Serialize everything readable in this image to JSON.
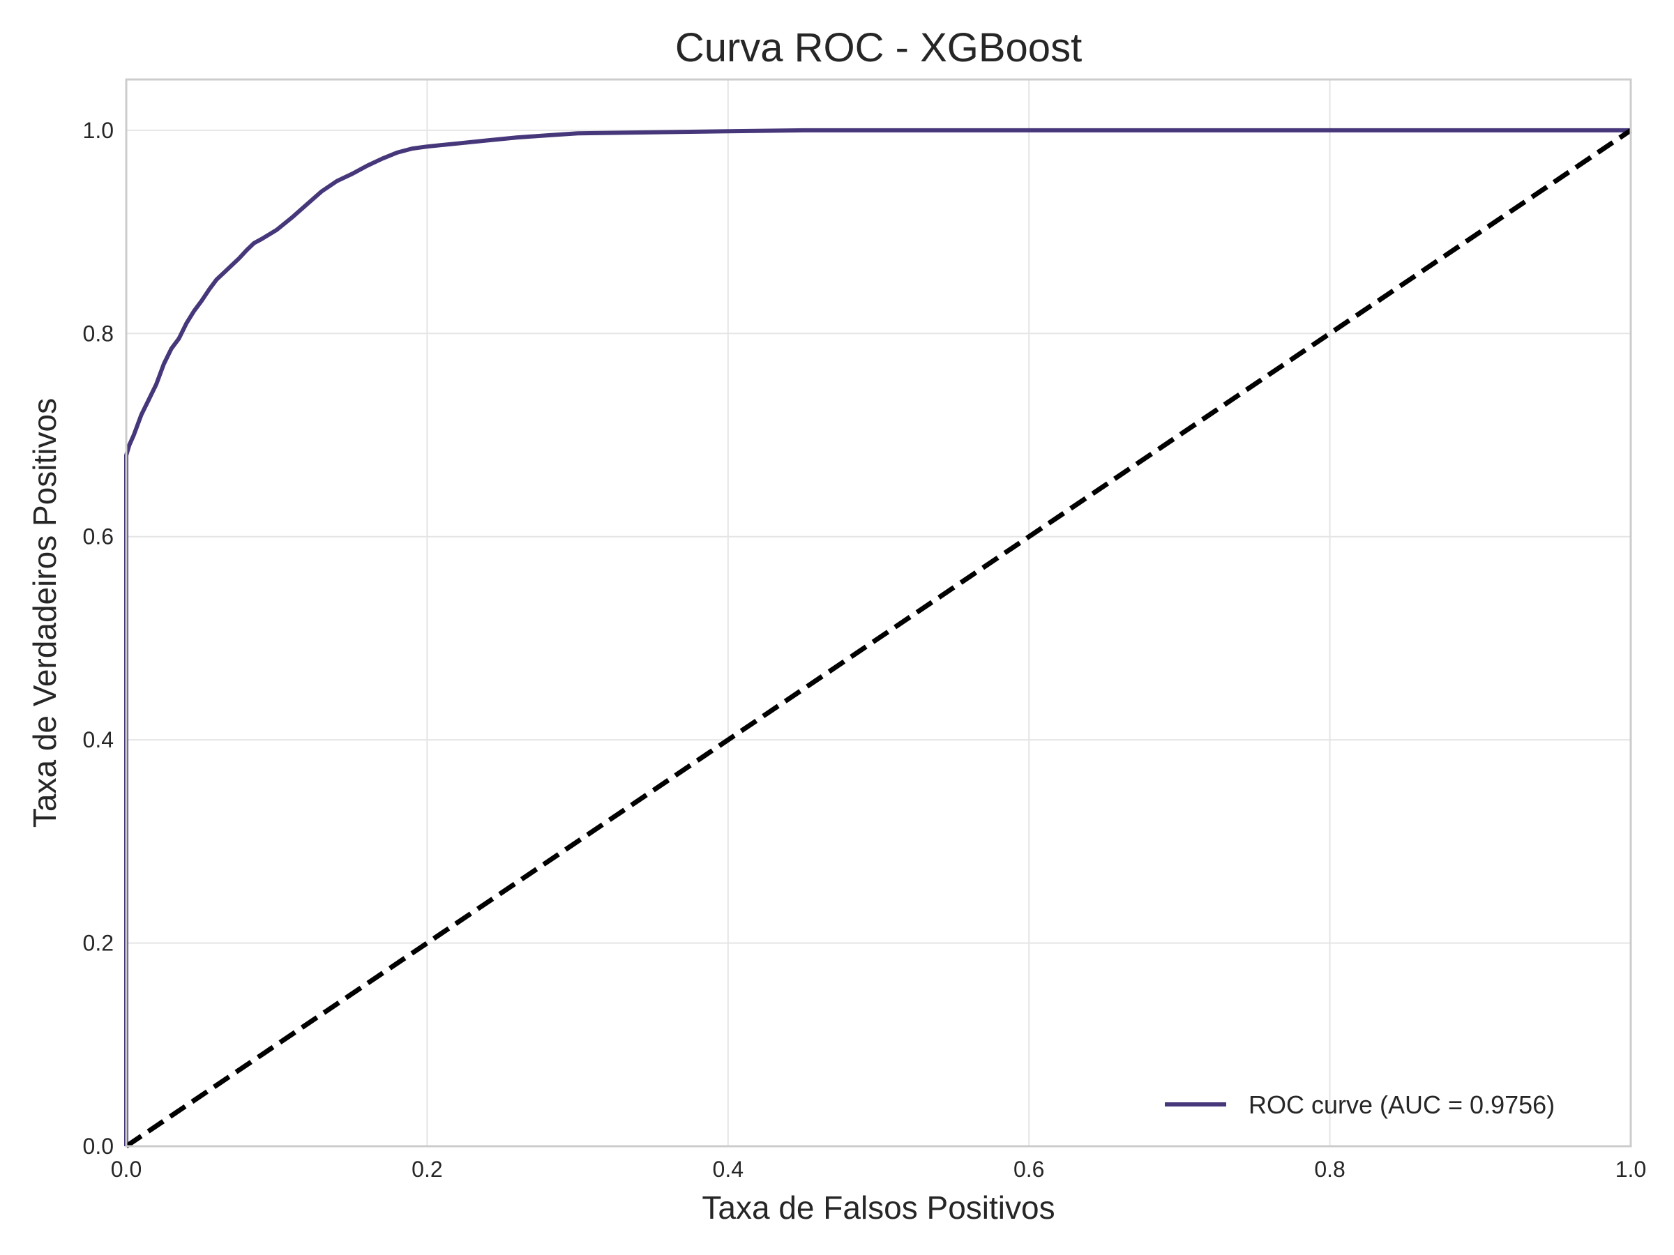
{
  "chart_data": {
    "type": "line",
    "title": "Curva ROC - XGBoost",
    "xlabel": "Taxa de Falsos Positivos",
    "ylabel": "Taxa de Verdadeiros Positivos",
    "xlim": [
      0.0,
      1.0
    ],
    "ylim": [
      0.0,
      1.05
    ],
    "xticks": [
      "0.0",
      "0.2",
      "0.4",
      "0.6",
      "0.8",
      "1.0"
    ],
    "yticks": [
      "0.0",
      "0.2",
      "0.4",
      "0.6",
      "0.8",
      "1.0"
    ],
    "grid": true,
    "legend_position": "lower-right",
    "series": [
      {
        "name": "ROC curve (AUC = 0.9756)",
        "color": "#46377b",
        "style": "solid",
        "x": [
          0.0,
          0.0,
          0.0,
          0.002,
          0.005,
          0.01,
          0.015,
          0.02,
          0.025,
          0.03,
          0.035,
          0.04,
          0.045,
          0.05,
          0.055,
          0.06,
          0.065,
          0.07,
          0.075,
          0.08,
          0.085,
          0.09,
          0.1,
          0.11,
          0.12,
          0.13,
          0.14,
          0.15,
          0.16,
          0.17,
          0.18,
          0.19,
          0.2,
          0.22,
          0.24,
          0.26,
          0.28,
          0.3,
          0.35,
          0.4,
          0.45,
          0.5,
          0.6,
          0.7,
          0.8,
          0.9,
          1.0
        ],
        "y": [
          0.0,
          0.6,
          0.68,
          0.69,
          0.7,
          0.72,
          0.735,
          0.75,
          0.77,
          0.785,
          0.795,
          0.81,
          0.822,
          0.832,
          0.843,
          0.853,
          0.86,
          0.867,
          0.874,
          0.882,
          0.889,
          0.893,
          0.902,
          0.914,
          0.927,
          0.94,
          0.95,
          0.957,
          0.965,
          0.972,
          0.978,
          0.982,
          0.984,
          0.987,
          0.99,
          0.993,
          0.995,
          0.997,
          0.998,
          0.999,
          1.0,
          1.0,
          1.0,
          1.0,
          1.0,
          1.0,
          1.0
        ]
      },
      {
        "name": "",
        "color": "#000000",
        "style": "dashed",
        "x": [
          0.0,
          1.0
        ],
        "y": [
          0.0,
          1.0
        ]
      }
    ]
  }
}
